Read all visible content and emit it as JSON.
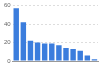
{
  "chart_data": {
    "type": "bar",
    "categories": [
      null,
      null,
      null,
      null,
      null,
      null,
      null,
      null,
      null,
      null,
      null,
      null
    ],
    "values": [
      57,
      42,
      22,
      20,
      19,
      19,
      17,
      14,
      13,
      11,
      6,
      2
    ],
    "color": "#3b7ddd",
    "ylim": [
      0,
      60
    ],
    "yticks": [
      0,
      20,
      40,
      60
    ],
    "grid": true,
    "tick_labels": "y"
  }
}
